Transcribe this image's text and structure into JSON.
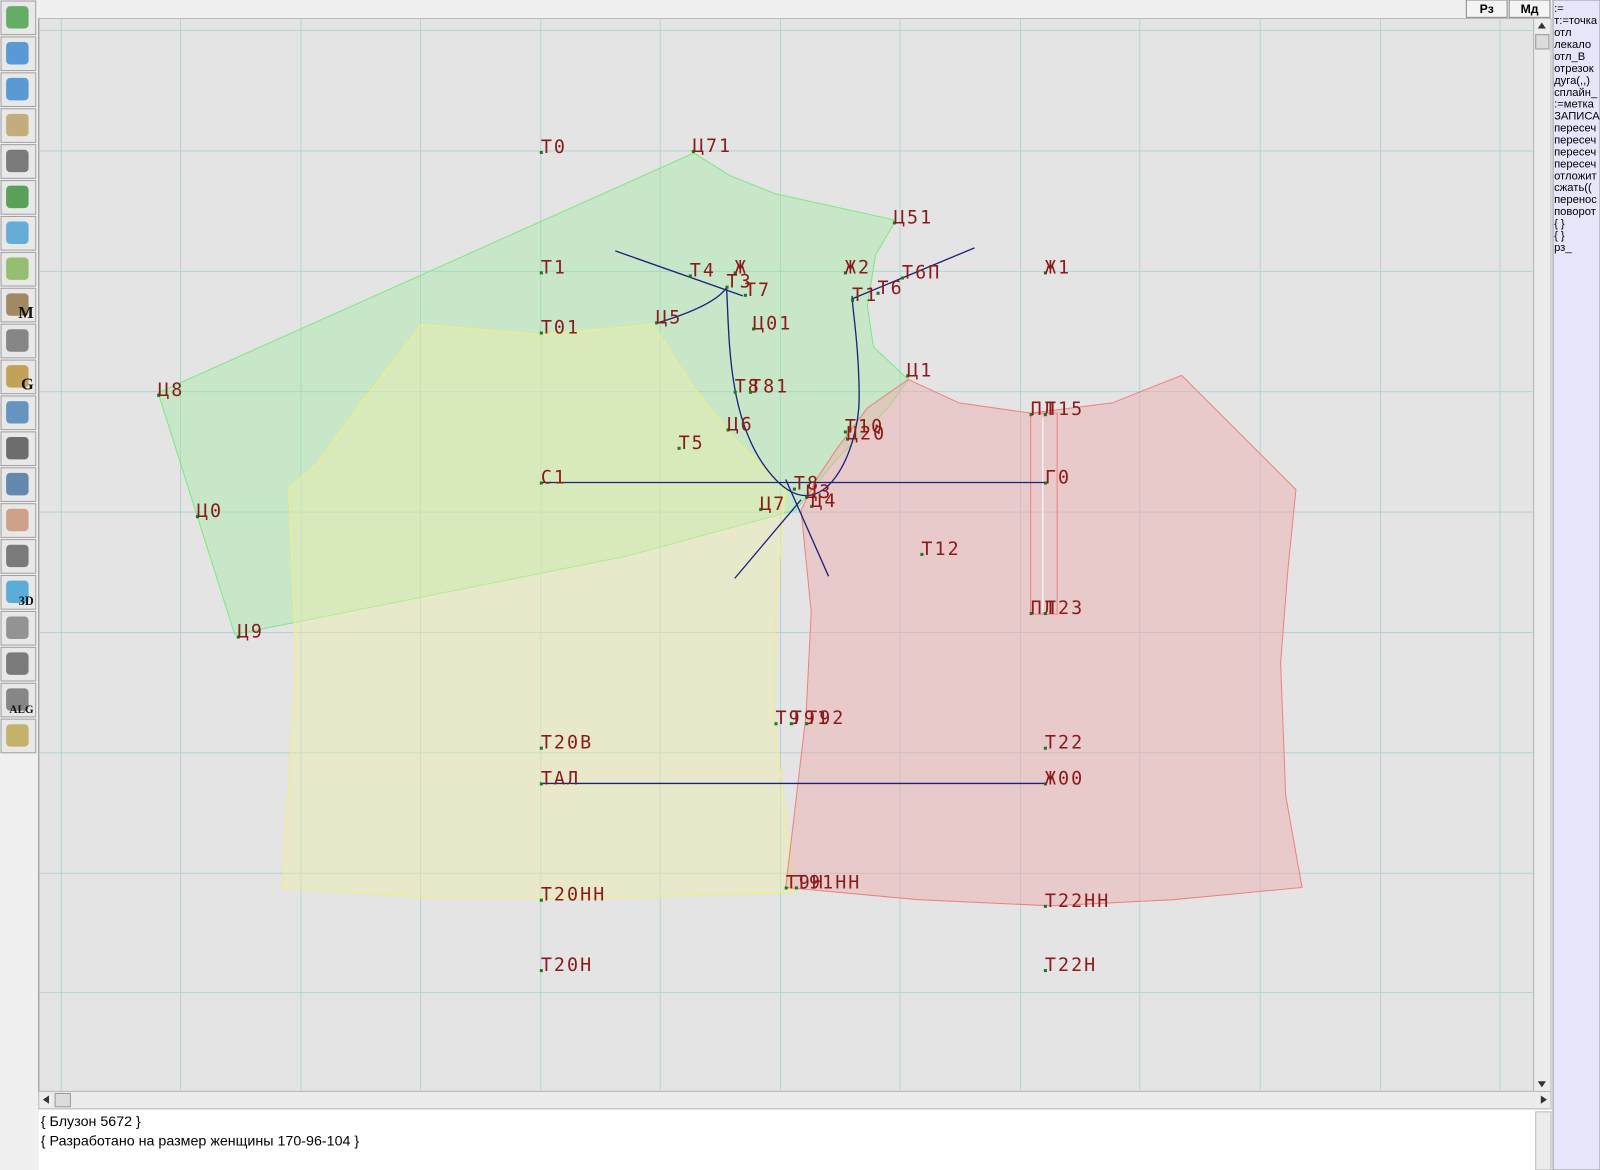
{
  "toolbar": {
    "icon_labels": [
      "M",
      "G",
      "3D",
      "ALG"
    ]
  },
  "top_buttons": [
    "Рз",
    "Мд"
  ],
  "canvas": {
    "labels": [
      "Т0",
      "Ц71",
      "Ц51",
      "Т1",
      "Т4",
      "Ж",
      "Т3",
      "Т7",
      "Ж2",
      "Т6П",
      "Т6",
      "Т1",
      "Ж1",
      "Т01",
      "Ц5",
      "Ц01",
      "Ц1",
      "Ц8",
      "Т8",
      "Т81",
      "ПЛ",
      "Т15",
      "Ц6",
      "Т10",
      "Ц20",
      "Т5",
      "С1",
      "Г0",
      "Т8",
      "Ц3",
      "Ц7",
      "Ц4",
      "Ц0",
      "Т12",
      "Ц9",
      "ПЛ",
      "Т23",
      "Т9",
      "Т91",
      "Т92",
      "Т20В",
      "Т22",
      "ТАЛ",
      "Ж00",
      "Т9Н",
      "Т91НН",
      "Т20НН",
      "Т22НН",
      "Т20Н",
      "Т22Н"
    ]
  },
  "command_panel": {
    "lines": [
      ":=",
      "т:=точка",
      "отл",
      "лекало",
      "отл_В",
      "отрезок",
      "дуга(,,)",
      "сплайн_",
      ":=метка",
      "ЗАПИСА",
      "пересеч",
      "пересеч",
      "пересеч",
      "пересеч",
      "отложит",
      "сжать((",
      "перенос",
      "поворот",
      "{ }",
      "{ }",
      "рз_"
    ]
  },
  "comments": {
    "lines": [
      "{ Блузон 5672 }",
      "{ Разработано на размер женщины 170-96-104 }"
    ]
  }
}
